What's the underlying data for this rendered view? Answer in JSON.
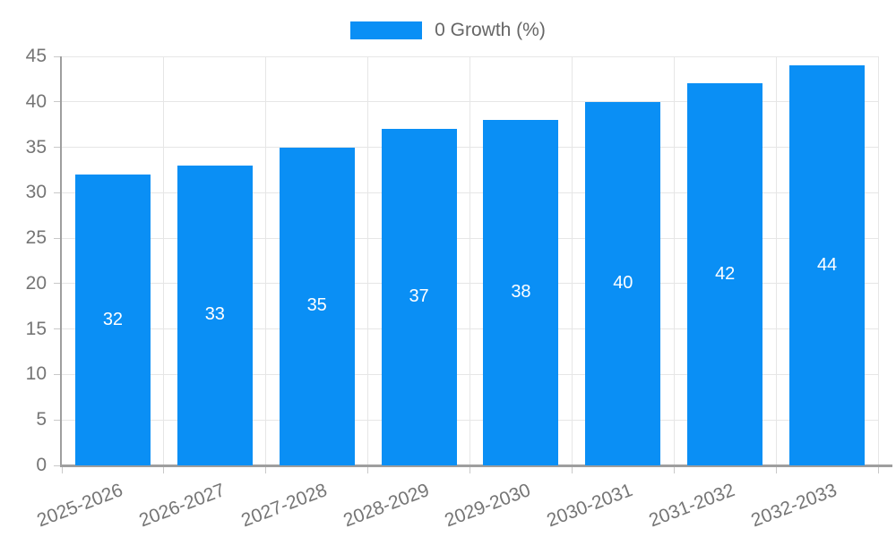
{
  "colors": {
    "bar": "#0a8ff5",
    "grid": "#e6e6e6",
    "axis_line": "#9e9e9e",
    "tick": "#c9c9c9",
    "axis_text": "#757575",
    "legend_text": "#666666",
    "bar_label_text": "#ffffff",
    "background": "#ffffff"
  },
  "chart_data": {
    "type": "bar",
    "title": "",
    "xlabel": "",
    "ylabel": "",
    "categories": [
      "2025-2026",
      "2026-2027",
      "2027-2028",
      "2028-2029",
      "2029-2030",
      "2030-2031",
      "2031-2032",
      "2032-2033"
    ],
    "series": [
      {
        "name": "0 Growth (%)",
        "values": [
          32,
          33,
          35,
          37,
          38,
          40,
          42,
          44
        ]
      }
    ],
    "ylim": [
      0,
      45
    ],
    "ytick_step": 5,
    "yticks": [
      0,
      5,
      10,
      15,
      20,
      25,
      30,
      35,
      40,
      45
    ],
    "grid": true,
    "legend_position": "top",
    "value_labels": "inside-center",
    "x_label_rotation_deg": -21
  }
}
